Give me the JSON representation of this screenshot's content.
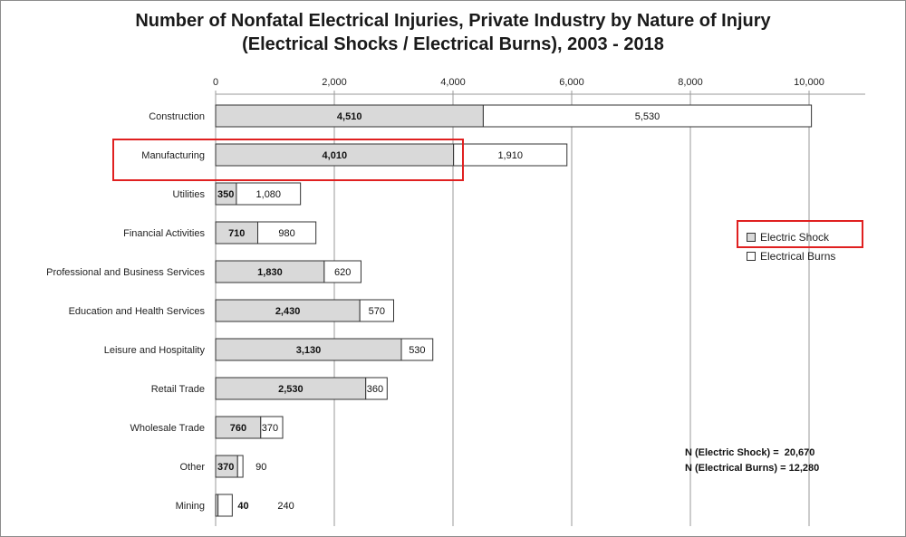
{
  "chart_data": {
    "type": "bar",
    "orientation": "horizontal",
    "stacked": true,
    "title": "Number of Nonfatal Electrical Injuries, Private Industry by Nature of Injury (Electrical Shocks / Electrical Burns), 2003 - 2018",
    "title_lines": [
      "Number of Nonfatal Electrical Injuries, Private Industry by Nature of Injury",
      "(Electrical Shocks / Electrical Burns), 2003 - 2018"
    ],
    "categories": [
      "Construction",
      "Manufacturing",
      "Utilities",
      "Financial Activities",
      "Professional and Business Services",
      "Education and Health Services",
      "Leisure and Hospitality",
      "Retail Trade",
      "Wholesale Trade",
      "Other",
      "Mining"
    ],
    "series": [
      {
        "name": "Electric Shock",
        "color": "#d9d9d9",
        "values": [
          4510,
          4010,
          350,
          710,
          1830,
          2430,
          3130,
          2530,
          760,
          370,
          40
        ]
      },
      {
        "name": "Electrical Burns",
        "color": "#ffffff",
        "values": [
          5530,
          1910,
          1080,
          980,
          620,
          570,
          530,
          360,
          370,
          90,
          240
        ]
      }
    ],
    "value_labels": {
      "Electric Shock": [
        "4,510",
        "4,010",
        "350",
        "710",
        "1,830",
        "2,430",
        "3,130",
        "2,530",
        "760",
        "370",
        "40"
      ],
      "Electrical Burns": [
        "5,530",
        "1,910",
        "1,080",
        "980",
        "620",
        "570",
        "530",
        "360",
        "370",
        "90",
        "240"
      ]
    },
    "xlim": [
      0,
      10000
    ],
    "xticks": [
      0,
      2000,
      4000,
      6000,
      8000,
      10000
    ],
    "xtick_labels": [
      "0",
      "2,000",
      "4,000",
      "6,000",
      "8,000",
      "10,000"
    ],
    "x_axis_position": "top",
    "grid": true,
    "legend_placement": "right",
    "highlight_colors": {
      "box": "#e02020"
    },
    "highlights": [
      "Manufacturing",
      "Electric Shock"
    ],
    "notes": [
      "N (Electric Shock) =  20,670",
      "N (Electrical Burns) = 12,280"
    ]
  }
}
